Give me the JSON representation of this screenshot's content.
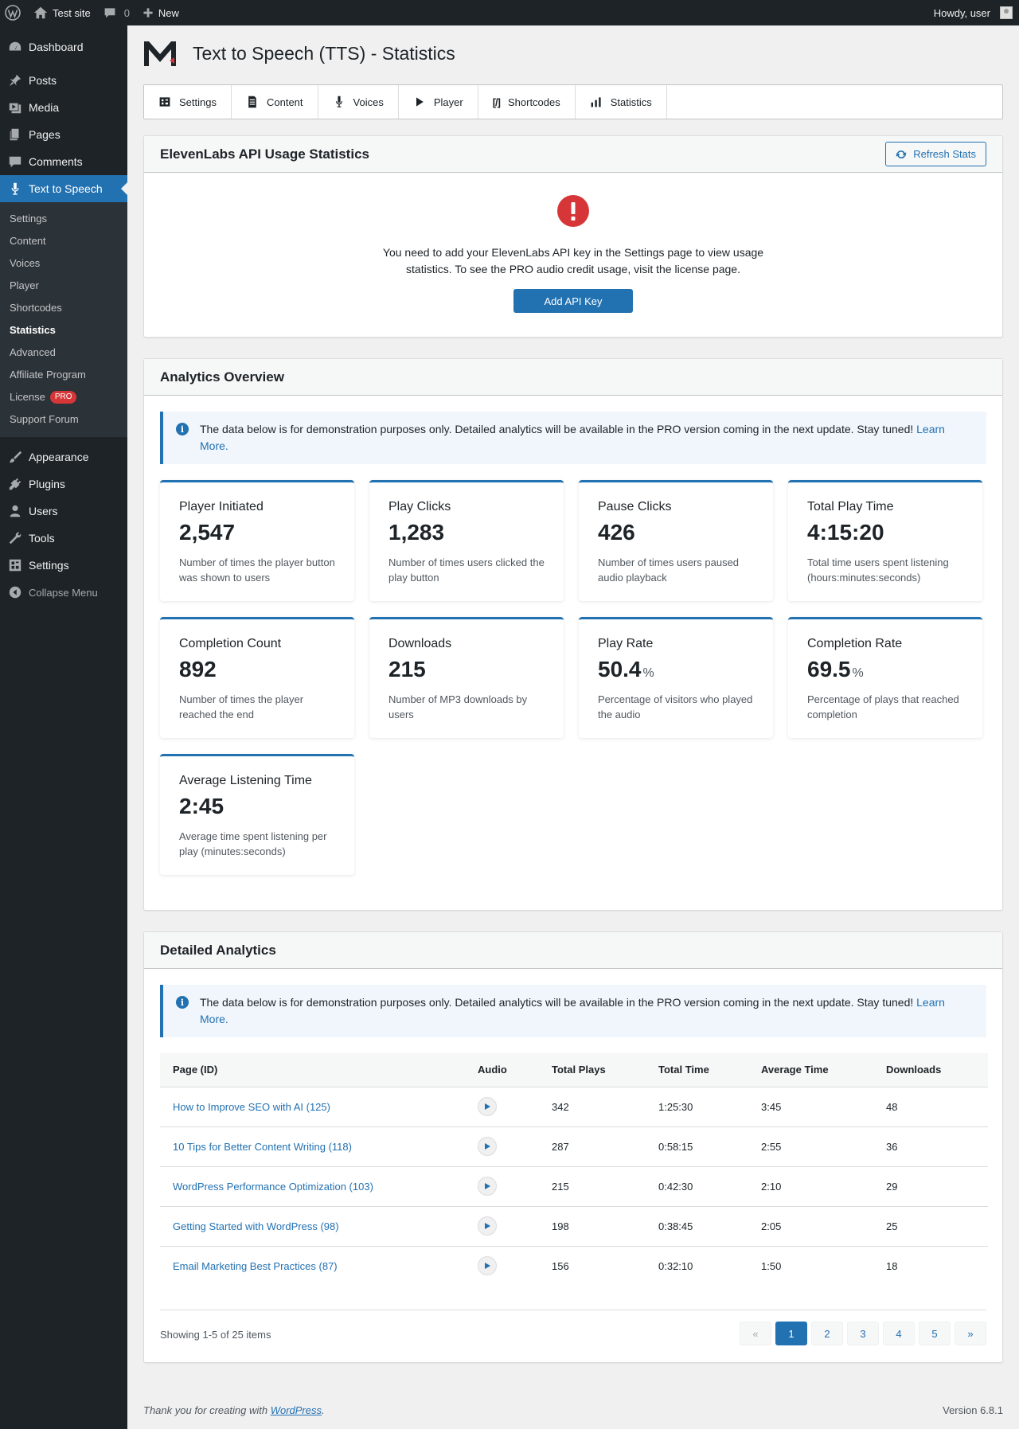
{
  "admin_bar": {
    "site_name": "Test site",
    "comments_count": "0",
    "new_label": "New",
    "howdy": "Howdy, user"
  },
  "sidebar": {
    "top_items": [
      {
        "label": "Dashboard",
        "icon": "dashboard-icon"
      }
    ],
    "items": [
      {
        "label": "Posts",
        "icon": "pin-icon"
      },
      {
        "label": "Media",
        "icon": "media-icon"
      },
      {
        "label": "Pages",
        "icon": "pages-icon"
      },
      {
        "label": "Comments",
        "icon": "comment-icon"
      }
    ],
    "current": {
      "label": "Text to Speech",
      "icon": "microphone-icon"
    },
    "submenu": [
      "Settings",
      "Content",
      "Voices",
      "Player",
      "Shortcodes",
      "Statistics",
      "Advanced",
      "Affiliate Program",
      "License",
      "Support Forum"
    ],
    "submenu_active": "Statistics",
    "license_badge": "PRO",
    "bottom_items": [
      {
        "label": "Appearance",
        "icon": "brush-icon"
      },
      {
        "label": "Plugins",
        "icon": "plugin-icon"
      },
      {
        "label": "Users",
        "icon": "user-icon"
      },
      {
        "label": "Tools",
        "icon": "wrench-icon"
      },
      {
        "label": "Settings",
        "icon": "settings-icon"
      }
    ],
    "collapse_label": "Collapse Menu"
  },
  "page": {
    "title": "Text to Speech (TTS) - Statistics"
  },
  "tabs": [
    {
      "label": "Settings",
      "icon": "settings-icon"
    },
    {
      "label": "Content",
      "icon": "document-icon"
    },
    {
      "label": "Voices",
      "icon": "microphone-icon"
    },
    {
      "label": "Player",
      "icon": "play-icon"
    },
    {
      "label": "Shortcodes",
      "icon": "shortcode-icon"
    },
    {
      "label": "Statistics",
      "icon": "chart-bar-icon"
    }
  ],
  "api_card": {
    "title": "ElevenLabs API Usage Statistics",
    "refresh_label": "Refresh Stats",
    "message": "You need to add your ElevenLabs API key in the Settings page to view usage statistics. To see the PRO audio credit usage, visit the license page.",
    "button_label": "Add API Key"
  },
  "analytics": {
    "title": "Analytics Overview",
    "notice_text": "The data below is for demonstration purposes only. Detailed analytics will be available in the PRO version coming in the next update. Stay tuned!",
    "notice_link": "Learn More.",
    "stats": [
      {
        "label": "Player Initiated",
        "value": "2,547",
        "unit": "",
        "desc": "Number of times the player button was shown to users"
      },
      {
        "label": "Play Clicks",
        "value": "1,283",
        "unit": "",
        "desc": "Number of times users clicked the play button"
      },
      {
        "label": "Pause Clicks",
        "value": "426",
        "unit": "",
        "desc": "Number of times users paused audio playback"
      },
      {
        "label": "Total Play Time",
        "value": "4:15:20",
        "unit": "",
        "desc": "Total time users spent listening (hours:minutes:seconds)"
      },
      {
        "label": "Completion Count",
        "value": "892",
        "unit": "",
        "desc": "Number of times the player reached the end"
      },
      {
        "label": "Downloads",
        "value": "215",
        "unit": "",
        "desc": "Number of MP3 downloads by users"
      },
      {
        "label": "Play Rate",
        "value": "50.4",
        "unit": "%",
        "desc": "Percentage of visitors who played the audio"
      },
      {
        "label": "Completion Rate",
        "value": "69.5",
        "unit": "%",
        "desc": "Percentage of plays that reached completion"
      },
      {
        "label": "Average Listening Time",
        "value": "2:45",
        "unit": "",
        "desc": "Average time spent listening per play (minutes:seconds)"
      }
    ]
  },
  "detailed": {
    "title": "Detailed Analytics",
    "notice_text": "The data below is for demonstration purposes only. Detailed analytics will be available in the PRO version coming in the next update. Stay tuned!",
    "notice_link": "Learn More.",
    "columns": [
      "Page (ID)",
      "Audio",
      "Total Plays",
      "Total Time",
      "Average Time",
      "Downloads"
    ],
    "rows": [
      {
        "page": "How to Improve SEO with AI (125)",
        "plays": "342",
        "total_time": "1:25:30",
        "avg_time": "3:45",
        "downloads": "48"
      },
      {
        "page": "10 Tips for Better Content Writing (118)",
        "plays": "287",
        "total_time": "0:58:15",
        "avg_time": "2:55",
        "downloads": "36"
      },
      {
        "page": "WordPress Performance Optimization (103)",
        "plays": "215",
        "total_time": "0:42:30",
        "avg_time": "2:10",
        "downloads": "29"
      },
      {
        "page": "Getting Started with WordPress (98)",
        "plays": "198",
        "total_time": "0:38:45",
        "avg_time": "2:05",
        "downloads": "25"
      },
      {
        "page": "Email Marketing Best Practices (87)",
        "plays": "156",
        "total_time": "0:32:10",
        "avg_time": "1:50",
        "downloads": "18"
      }
    ],
    "showing": "Showing 1-5 of 25 items",
    "pagination": {
      "prev": "«",
      "pages": [
        "1",
        "2",
        "3",
        "4",
        "5"
      ],
      "next": "»",
      "current": "1"
    }
  },
  "footer": {
    "thanks_prefix": "Thank you for creating with ",
    "thanks_link": "WordPress",
    "thanks_suffix": ".",
    "version": "Version 6.8.1"
  },
  "colors": {
    "accent": "#2271b1",
    "admin_dark": "#1d2327",
    "error": "#d63638",
    "background": "#f0f0f1"
  }
}
